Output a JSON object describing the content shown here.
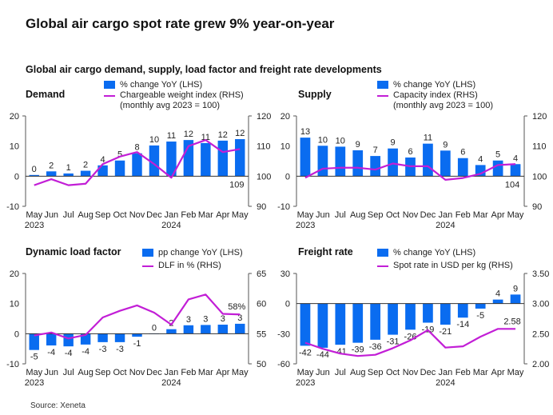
{
  "title": "Global air cargo spot rate grew 9% year-on-year",
  "subtitle": "Global air cargo demand, supply, load factor and freight rate developments",
  "source": "Source: Xeneta",
  "colors": {
    "bar": "#0a6cf0",
    "line": "#c21ed6",
    "axis": "#555555"
  },
  "chart_data": [
    {
      "type": "bar+line",
      "title": "Demand",
      "legend": {
        "bar": "% change YoY (LHS)",
        "line": [
          "Chargeable weight index (RHS)",
          "(monthly avg 2023 = 100)"
        ]
      },
      "categories": [
        "May",
        "Jun",
        "Jul",
        "Aug",
        "Sep",
        "Oct",
        "Nov",
        "Dec",
        "Jan",
        "Feb",
        "Mar",
        "Apr",
        "May"
      ],
      "years": [
        "2023",
        "2024"
      ],
      "left_ticks": [
        "20",
        "10",
        "0",
        "-10"
      ],
      "right_ticks": [
        "120",
        "110",
        "100",
        "90"
      ],
      "ylim_left": [
        -10,
        20
      ],
      "ylim_right": [
        90,
        120
      ],
      "bar_values": [
        0.4,
        1.6,
        0.9,
        1.8,
        3.6,
        5.2,
        7.6,
        10.2,
        11.5,
        12,
        11,
        11.8,
        12.3
      ],
      "bar_labels": [
        "0",
        "2",
        "1",
        "2",
        "4",
        "5",
        "8",
        "10",
        "11",
        "12",
        "11",
        "12",
        "12"
      ],
      "line_values": [
        97,
        99,
        97,
        97.5,
        104,
        106.5,
        108,
        104,
        99.5,
        110,
        112,
        108,
        109
      ],
      "end_label": "109"
    },
    {
      "type": "bar+line",
      "title": "Supply",
      "legend": {
        "bar": "% change YoY (LHS)",
        "line": [
          "Capacity index (RHS)",
          "(monthly avg 2023 = 100)"
        ]
      },
      "categories": [
        "May",
        "Jun",
        "Jul",
        "Aug",
        "Sep",
        "Oct",
        "Nov",
        "Dec",
        "Jan",
        "Feb",
        "Mar",
        "Apr",
        "May"
      ],
      "years": [
        "2023",
        "2024"
      ],
      "left_ticks": [
        "20",
        "10",
        "0",
        "-10"
      ],
      "right_ticks": [
        "120",
        "110",
        "100",
        "90"
      ],
      "ylim_left": [
        -10,
        20
      ],
      "ylim_right": [
        90,
        120
      ],
      "bar_values": [
        12.8,
        10.1,
        9.8,
        8.6,
        6.7,
        9.2,
        6.2,
        10.8,
        8.5,
        6,
        3.7,
        5.2,
        4
      ],
      "bar_labels": [
        "13",
        "10",
        "10",
        "9",
        "7",
        "9",
        "6",
        "11",
        "9",
        "6",
        "4",
        "5",
        "4"
      ],
      "line_values": [
        99.5,
        102.5,
        102.8,
        102.8,
        102.2,
        104.2,
        103.3,
        103.3,
        98.8,
        99.4,
        100.8,
        103.7,
        104
      ],
      "end_label": "104"
    },
    {
      "type": "bar+line",
      "title": "Dynamic load factor",
      "legend": {
        "bar": "pp change YoY (LHS)",
        "line": [
          "DLF in % (RHS)"
        ]
      },
      "categories": [
        "May",
        "Jun",
        "Jul",
        "Aug",
        "Sep",
        "Oct",
        "Nov",
        "Dec",
        "Jan",
        "Feb",
        "Mar",
        "Apr",
        "May"
      ],
      "years": [
        "2023",
        "2024"
      ],
      "left_ticks": [
        "20",
        "10",
        "0",
        "-10"
      ],
      "right_ticks": [
        "65",
        "60",
        "55",
        "50"
      ],
      "ylim_left": [
        -10,
        20
      ],
      "ylim_right": [
        50,
        65
      ],
      "bar_values": [
        -5.4,
        -3.9,
        -4.2,
        -3.6,
        -2.8,
        -2.8,
        -1,
        0,
        1.5,
        2.8,
        2.9,
        3,
        3.3
      ],
      "bar_labels": [
        "-5",
        "-4",
        "-4",
        "-4",
        "-3",
        "-3",
        "-1",
        "0",
        "2",
        "3",
        "3",
        "3",
        "3"
      ],
      "line_values": [
        54.7,
        55.2,
        54.2,
        54.8,
        57.7,
        58.8,
        59.7,
        58.5,
        56.5,
        60.7,
        61.5,
        58.3,
        58.2
      ],
      "end_label": "58%"
    },
    {
      "type": "bar+line",
      "title": "Freight rate",
      "legend": {
        "bar": "% change YoY (LHS)",
        "line": [
          "Spot rate in USD per kg (RHS)"
        ]
      },
      "categories": [
        "May",
        "Jun",
        "Jul",
        "Aug",
        "Sep",
        "Oct",
        "Nov",
        "Dec",
        "Jan",
        "Feb",
        "Mar",
        "Apr",
        "May"
      ],
      "years": [
        "2023",
        "2024"
      ],
      "left_ticks": [
        "30",
        "0",
        "-30",
        "-60"
      ],
      "right_ticks": [
        "3.50",
        "3.00",
        "2.50",
        "2.00"
      ],
      "ylim_left": [
        -60,
        30
      ],
      "ylim_right": [
        2.0,
        3.5
      ],
      "bar_values": [
        -42,
        -44,
        -41,
        -39,
        -36,
        -31,
        -26,
        -19,
        -21,
        -14,
        -5,
        4,
        9
      ],
      "bar_labels": [
        "-42",
        "-44",
        "-41",
        "-39",
        "-36",
        "-31",
        "-26",
        "-19",
        "-21",
        "-14",
        "-5",
        "4",
        "9"
      ],
      "line_values": [
        2.35,
        2.25,
        2.17,
        2.13,
        2.15,
        2.26,
        2.39,
        2.56,
        2.27,
        2.29,
        2.45,
        2.58,
        2.58
      ],
      "end_label": "2.58"
    }
  ]
}
